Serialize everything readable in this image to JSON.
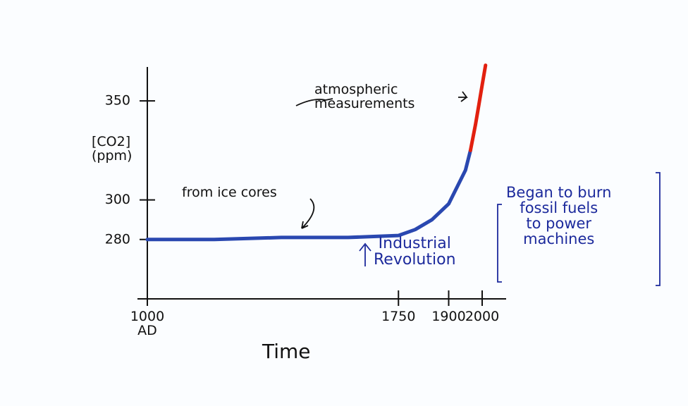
{
  "chart_data": {
    "type": "line",
    "ylabel": "[CO2]\n(ppm)",
    "xlabel": "Time",
    "xlim": [
      1000,
      2040
    ],
    "xticks": [
      {
        "value": 1000,
        "label": "1000\nAD"
      },
      1750,
      1900,
      2000
    ],
    "ylim": [
      250,
      370
    ],
    "yticks": [
      280,
      300,
      350
    ],
    "series": [
      {
        "name": "from ice cores",
        "color": "#2a48b0",
        "x": [
          1000,
          1200,
          1400,
          1600,
          1750,
          1800,
          1850,
          1900,
          1950,
          1965
        ],
        "values": [
          280,
          280,
          281,
          281,
          282,
          285,
          290,
          298,
          315,
          325
        ]
      },
      {
        "name": "atmospheric measurements",
        "color": "#e2200f",
        "x": [
          1965,
          1980,
          1990,
          2000,
          2010
        ],
        "values": [
          325,
          338,
          348,
          358,
          368
        ]
      }
    ],
    "annotations": [
      "Industrial\nRevolution",
      "Began to burn\nfossil fuels\nto power\nmachines"
    ]
  }
}
